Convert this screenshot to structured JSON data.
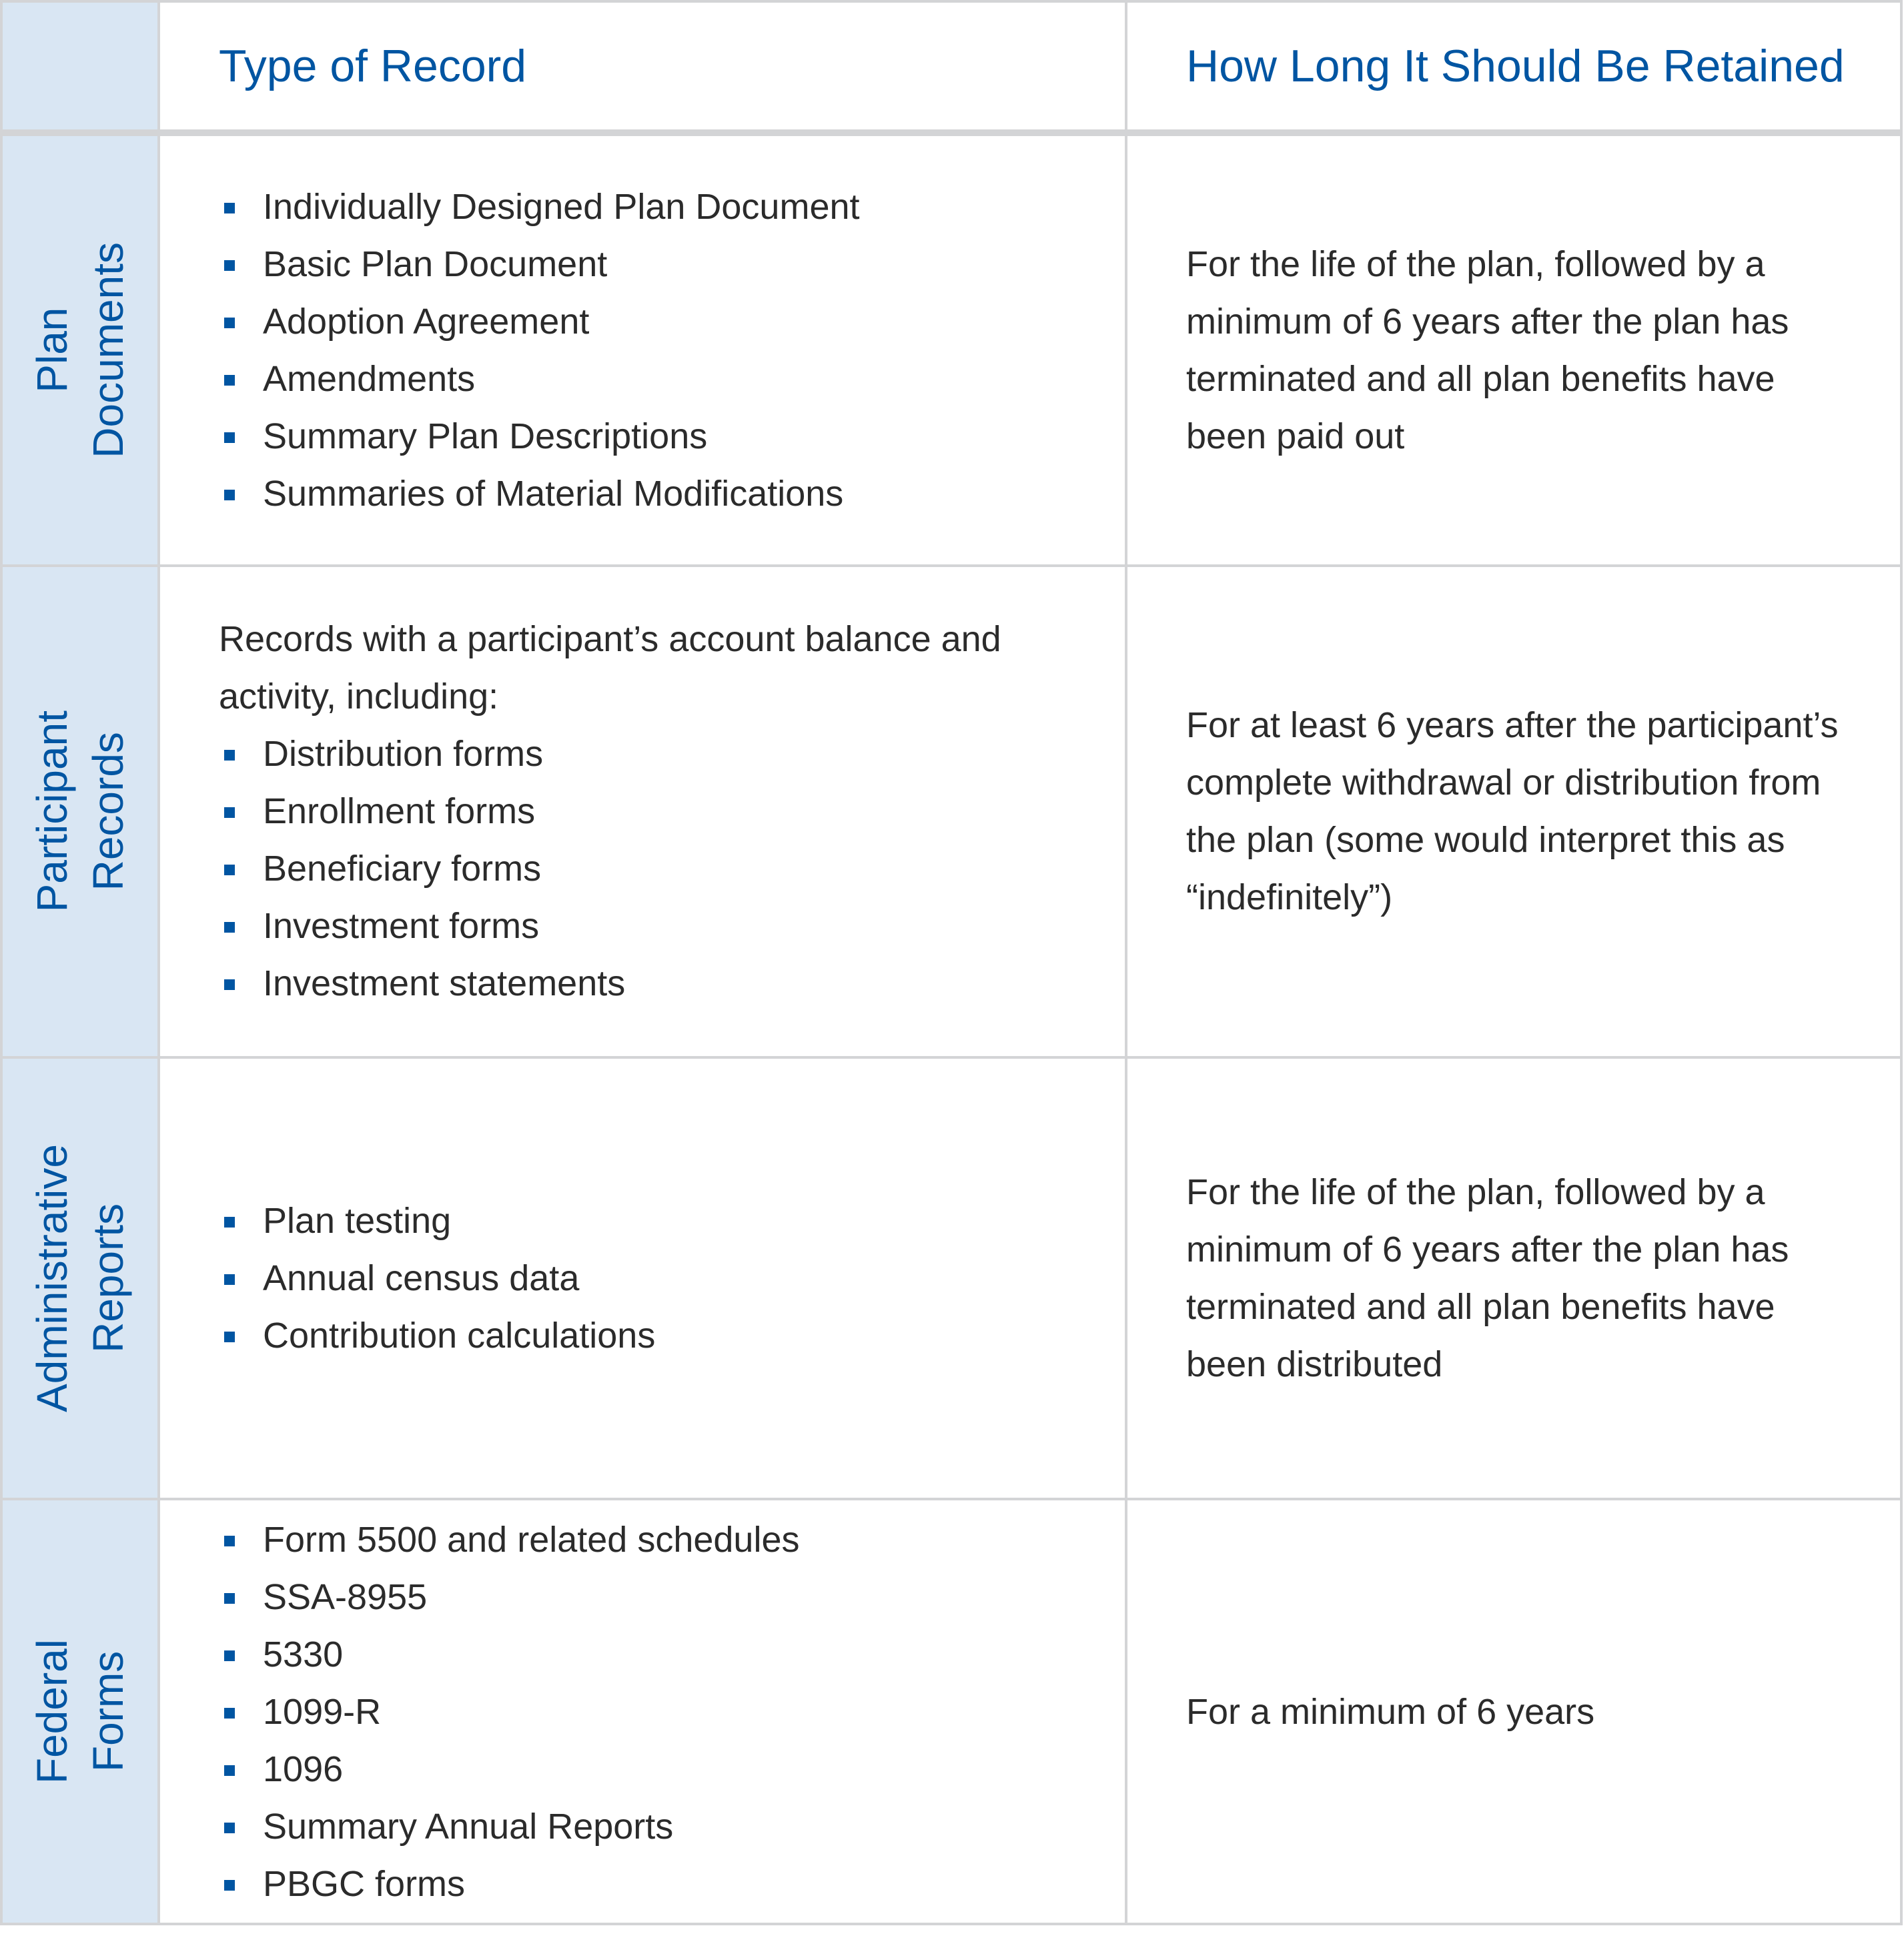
{
  "header": {
    "col_type": "Type of Record",
    "col_retention": "How Long It Should Be Retained"
  },
  "colors": {
    "accent": "#0055a2",
    "side_bg": "#d9e6f3",
    "border": "#d3d4d6"
  },
  "rows": [
    {
      "category": "Plan\nDocuments",
      "intro": "",
      "items": [
        "Individually Designed Plan Document",
        "Basic Plan Document",
        "Adoption Agreement",
        "Amendments",
        "Summary Plan Descriptions",
        "Summaries of Material Modifications"
      ],
      "retention": "For the life of the plan, followed by a minimum of 6 years after the plan has terminated and all plan benefits have been paid out"
    },
    {
      "category": "Participant\nRecords",
      "intro": "Records with a participant’s account balance and activity, including:",
      "items": [
        "Distribution forms",
        "Enrollment forms",
        "Beneficiary forms",
        "Investment forms",
        "Investment statements"
      ],
      "retention": "For at least 6 years after the participant’s complete withdrawal or distribution from the plan (some would interpret this as “indefinitely”)"
    },
    {
      "category": "Administrative\nReports",
      "intro": "",
      "items": [
        "Plan testing",
        "Annual census data",
        "Contribution calculations"
      ],
      "retention": "For the life of the plan, followed by a minimum of 6 years after the plan has terminated and all plan benefits have been distributed"
    },
    {
      "category": "Federal\nForms",
      "intro": "",
      "items": [
        "Form 5500 and related schedules",
        "SSA-8955",
        "5330",
        "1099-R",
        "1096",
        "Summary Annual Reports",
        "PBGC forms"
      ],
      "retention": "For a minimum of 6 years"
    }
  ]
}
